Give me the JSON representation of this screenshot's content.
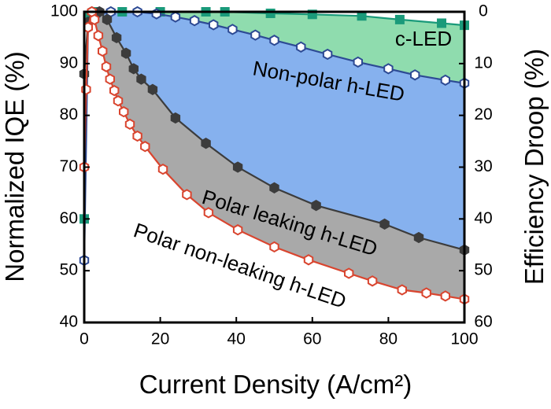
{
  "chart_data": {
    "type": "line",
    "xlabel": "Current Density (A/cm²)",
    "ylabel": "Normalized IQE (%)",
    "y2label": "Efficiency Droop (%)",
    "xlim": [
      0,
      100
    ],
    "xticks": [
      0,
      20,
      40,
      60,
      80,
      100
    ],
    "ylim": [
      40,
      100
    ],
    "yticks": [
      40,
      50,
      60,
      70,
      80,
      90,
      100
    ],
    "y2lim": [
      60,
      0
    ],
    "y2ticks": [
      0,
      10,
      20,
      30,
      40,
      50,
      60
    ],
    "series": [
      {
        "name": "c-LED",
        "color": "#1a9a7a",
        "fill_color": "#8fdcae",
        "marker": "square",
        "filled": true,
        "x": [
          0,
          1,
          3,
          10,
          20,
          32,
          37,
          49,
          60,
          73,
          83,
          94,
          100
        ],
        "values": [
          60,
          99,
          100,
          100,
          100,
          100,
          100,
          99.7,
          99.5,
          99.2,
          98.5,
          97.8,
          97.4
        ]
      },
      {
        "name": "Non-polar h-LED",
        "color": "#2d4a94",
        "fill_color": "#86b1ee",
        "marker": "hexagon",
        "filled": false,
        "x": [
          0,
          1,
          3,
          7,
          14,
          19,
          24,
          29,
          34,
          39,
          45,
          50,
          57,
          64,
          72,
          80,
          87,
          95,
          100
        ],
        "values": [
          52,
          97,
          99.5,
          100,
          100,
          99.6,
          99,
          98.3,
          97.5,
          96.6,
          95.5,
          94.5,
          93.2,
          91.8,
          90.3,
          89,
          87.8,
          86.8,
          86.2
        ]
      },
      {
        "name": "Polar leaking h-LED",
        "color": "#3c3c3c",
        "fill_color": "#a9a9a9",
        "marker": "hexagon",
        "filled": true,
        "x": [
          0,
          1,
          2,
          4,
          6,
          8.5,
          11,
          13,
          15,
          18,
          24,
          32,
          40.4,
          50,
          61,
          79,
          88,
          100
        ],
        "values": [
          88,
          98,
          100,
          100,
          98.5,
          95,
          92,
          89,
          87,
          85,
          79.5,
          74.6,
          70,
          66,
          62.6,
          59,
          56.4,
          54
        ]
      },
      {
        "name": "Polar non-leaking h-LED",
        "color": "#d9452f",
        "fill_color": "#ffffff",
        "marker": "hexagon",
        "filled": false,
        "x": [
          0,
          0.5,
          1,
          2,
          2.7,
          3.7,
          4.8,
          5.8,
          6.8,
          7.9,
          8.9,
          10.4,
          12,
          14,
          16,
          20.7,
          27,
          32.7,
          40.4,
          50,
          59,
          69.6,
          75.8,
          83.6,
          90,
          95,
          100
        ],
        "values": [
          70,
          85,
          97,
          100,
          98.5,
          95.4,
          92.4,
          89.4,
          87,
          84.8,
          82.8,
          80.7,
          78.3,
          76,
          74,
          69.6,
          64.7,
          61.2,
          57.9,
          54.6,
          52.1,
          49.5,
          48,
          46.3,
          45.7,
          45.1,
          44.5
        ]
      }
    ]
  }
}
